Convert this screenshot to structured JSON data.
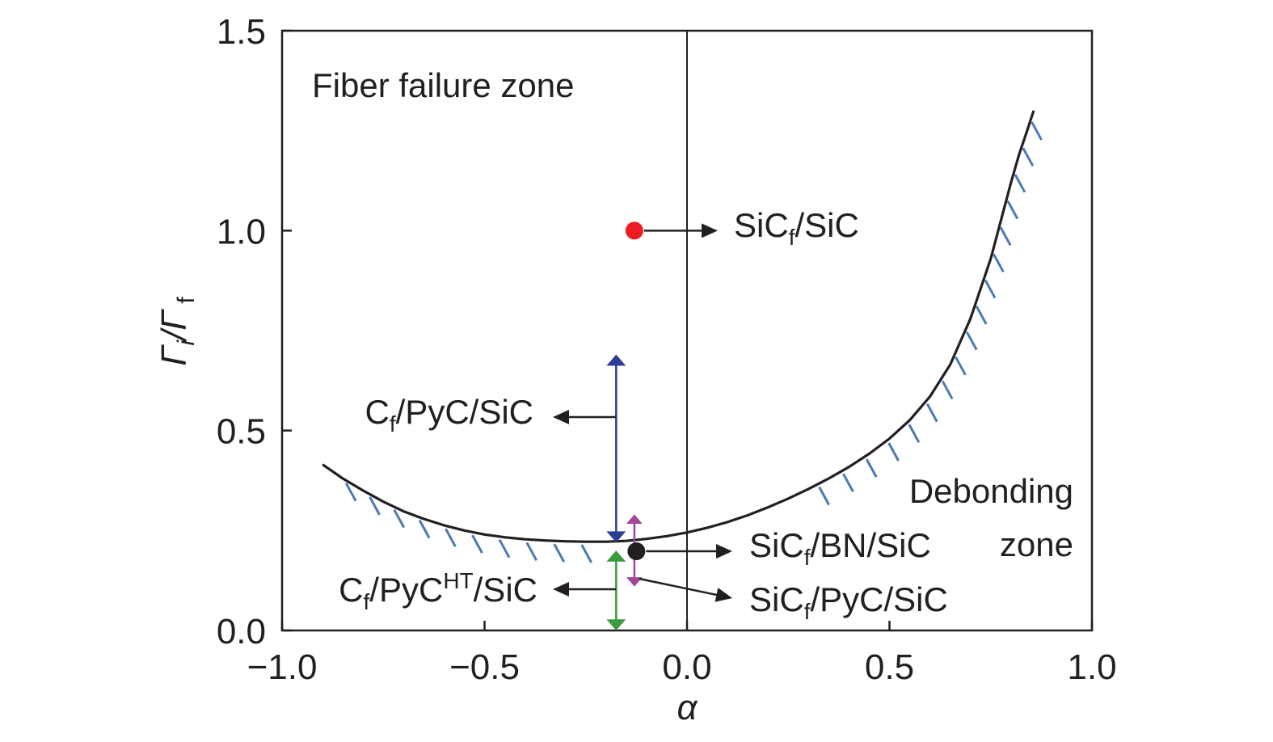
{
  "chart_data": {
    "type": "line",
    "xlabel": "α",
    "ylabel": {
      "main": "Γ",
      "sub1": "i",
      "sep": "/Γ",
      "sub2": "f"
    },
    "xlim": [
      -1.0,
      1.0
    ],
    "ylim": [
      0.0,
      1.5
    ],
    "xticks": [
      -1.0,
      -0.5,
      0.0,
      0.5,
      1.0
    ],
    "xtick_labels": [
      "−1.0",
      "−0.5",
      "0.0",
      "0.5",
      "1.0"
    ],
    "yticks": [
      0.0,
      0.5,
      1.0,
      1.5
    ],
    "ytick_labels": [
      "0.0",
      "0.5",
      "1.0",
      "1.5"
    ],
    "grid": false,
    "reference_line_x": 0.0,
    "boundary_curve": {
      "x": [
        -0.9,
        -0.85,
        -0.8,
        -0.75,
        -0.7,
        -0.65,
        -0.6,
        -0.55,
        -0.5,
        -0.45,
        -0.4,
        -0.35,
        -0.3,
        -0.25,
        -0.2,
        -0.15,
        -0.1,
        -0.05,
        0.0,
        0.05,
        0.1,
        0.15,
        0.2,
        0.25,
        0.3,
        0.35,
        0.4,
        0.45,
        0.5,
        0.55,
        0.6,
        0.65,
        0.7,
        0.75,
        0.8,
        0.82,
        0.84,
        0.856
      ],
      "y": [
        0.415,
        0.38,
        0.35,
        0.322,
        0.298,
        0.279,
        0.263,
        0.25,
        0.24,
        0.233,
        0.228,
        0.225,
        0.223,
        0.222,
        0.222,
        0.224,
        0.229,
        0.236,
        0.245,
        0.257,
        0.271,
        0.288,
        0.308,
        0.33,
        0.354,
        0.38,
        0.409,
        0.442,
        0.48,
        0.526,
        0.585,
        0.665,
        0.78,
        0.93,
        1.12,
        1.19,
        1.25,
        1.3
      ],
      "hatch_ranges": [
        [
          -0.88,
          -0.25
        ],
        [
          0.27,
          0.85
        ]
      ]
    },
    "points": [
      {
        "name": "SiCf/SiC",
        "x": -0.13,
        "y": 1.0,
        "color": "#ed1c24"
      },
      {
        "name": "SiCf/BN/SiC",
        "x": -0.125,
        "y": 0.198,
        "color": "#231f20"
      }
    ],
    "ranges": [
      {
        "name": "Cf/PyC/SiC",
        "x": -0.175,
        "y": [
          0.22,
          0.69
        ],
        "color": "#2e3d98"
      },
      {
        "name": "SiCf/PyC/SiC",
        "x": -0.13,
        "y": [
          0.11,
          0.29
        ],
        "color": "#a3449b"
      },
      {
        "name": "Cf/PyCHT/SiC",
        "x": -0.175,
        "y": [
          0.0,
          0.2
        ],
        "color": "#3a9c3f"
      }
    ],
    "colors": {
      "curve": "#231f20",
      "hatch": "#4a7ab5",
      "axes": "#231f20",
      "callout": "#231f20"
    },
    "annotations": {
      "fiber_zone": "Fiber failure zone",
      "debond_zone_1": "Debonding",
      "debond_zone_2": "zone",
      "sicf_sic": {
        "a": "SiC",
        "sub": "f",
        "b": "/SiC"
      },
      "cf_pyc_sic": {
        "a": "C",
        "sub": "f",
        "b": "/PyC/SiC"
      },
      "sicf_bn_sic": {
        "a": "SiC",
        "sub": "f",
        "b": "/BN/SiC"
      },
      "cf_pycht_sic": {
        "a": "C",
        "sub": "f",
        "b": "/PyC",
        "sup": "HT",
        "c": "/SiC"
      },
      "sicf_pyc_sic": {
        "a": "SiC",
        "sub": "f",
        "b": "/PyC/SiC"
      }
    }
  }
}
